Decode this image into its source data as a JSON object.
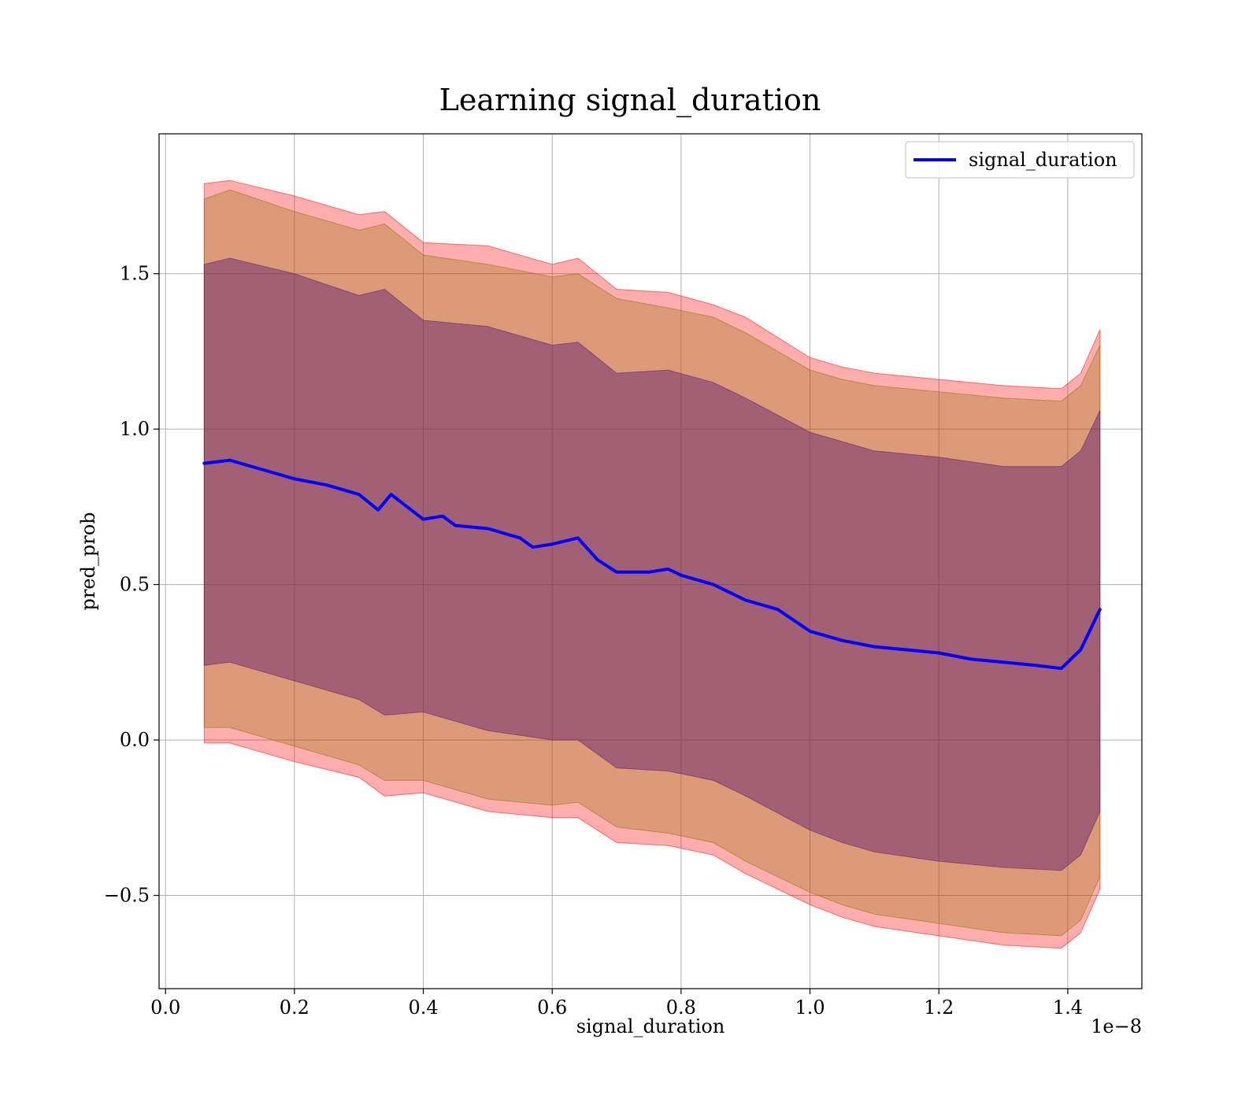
{
  "chart_data": {
    "type": "area",
    "title": "Learning signal_duration",
    "xlabel": "signal_duration",
    "ylabel": "pred_prob",
    "x_offset_text": "1e−8",
    "xlim": [
      -0.01,
      1.515
    ],
    "ylim": [
      -0.8,
      1.95
    ],
    "x_ticks": [
      0.0,
      0.2,
      0.4,
      0.6,
      0.8,
      1.0,
      1.2,
      1.4
    ],
    "x_tick_labels": [
      "0.0",
      "0.2",
      "0.4",
      "0.6",
      "0.8",
      "1.0",
      "1.2",
      "1.4"
    ],
    "y_ticks": [
      -0.5,
      0.0,
      0.5,
      1.0,
      1.5
    ],
    "y_tick_labels": [
      "−0.5",
      "0.0",
      "0.5",
      "1.0",
      "1.5"
    ],
    "grid": true,
    "legend": {
      "placement": "top-right",
      "entries": [
        "signal_duration"
      ]
    },
    "colors": {
      "line": "#0000ff",
      "band_outer": "#ff0000",
      "band_middle": "#8b7000",
      "band_inner": "#5a1a6e",
      "grid": "#b0b0b0"
    },
    "series": [
      {
        "name": "signal_duration",
        "x": [
          0.06,
          0.1,
          0.15,
          0.2,
          0.25,
          0.3,
          0.33,
          0.35,
          0.4,
          0.43,
          0.45,
          0.5,
          0.55,
          0.57,
          0.6,
          0.64,
          0.67,
          0.7,
          0.75,
          0.78,
          0.8,
          0.85,
          0.9,
          0.95,
          1.0,
          1.05,
          1.1,
          1.15,
          1.2,
          1.25,
          1.3,
          1.35,
          1.39,
          1.42,
          1.45
        ],
        "y": [
          0.89,
          0.9,
          0.87,
          0.84,
          0.82,
          0.79,
          0.74,
          0.79,
          0.71,
          0.72,
          0.69,
          0.68,
          0.65,
          0.62,
          0.63,
          0.65,
          0.58,
          0.54,
          0.54,
          0.55,
          0.53,
          0.5,
          0.45,
          0.42,
          0.35,
          0.32,
          0.3,
          0.29,
          0.28,
          0.26,
          0.25,
          0.24,
          0.23,
          0.29,
          0.42
        ]
      }
    ],
    "bands": [
      {
        "level": "outer",
        "x": [
          0.06,
          0.1,
          0.2,
          0.3,
          0.34,
          0.4,
          0.5,
          0.6,
          0.64,
          0.7,
          0.78,
          0.85,
          0.9,
          1.0,
          1.05,
          1.1,
          1.2,
          1.3,
          1.39,
          1.42,
          1.45
        ],
        "upper": [
          1.79,
          1.8,
          1.75,
          1.69,
          1.7,
          1.6,
          1.59,
          1.53,
          1.55,
          1.45,
          1.44,
          1.4,
          1.36,
          1.23,
          1.2,
          1.18,
          1.16,
          1.14,
          1.13,
          1.18,
          1.32
        ],
        "lower": [
          -0.01,
          -0.01,
          -0.07,
          -0.12,
          -0.18,
          -0.17,
          -0.23,
          -0.25,
          -0.25,
          -0.33,
          -0.34,
          -0.37,
          -0.43,
          -0.53,
          -0.57,
          -0.6,
          -0.63,
          -0.66,
          -0.67,
          -0.62,
          -0.48
        ]
      },
      {
        "level": "middle",
        "x": [
          0.06,
          0.1,
          0.2,
          0.3,
          0.34,
          0.4,
          0.5,
          0.6,
          0.64,
          0.7,
          0.78,
          0.85,
          0.9,
          1.0,
          1.05,
          1.1,
          1.2,
          1.3,
          1.39,
          1.42,
          1.45
        ],
        "upper": [
          1.74,
          1.77,
          1.7,
          1.64,
          1.66,
          1.56,
          1.53,
          1.49,
          1.5,
          1.42,
          1.39,
          1.36,
          1.31,
          1.19,
          1.16,
          1.14,
          1.12,
          1.1,
          1.09,
          1.14,
          1.27
        ],
        "lower": [
          0.04,
          0.04,
          -0.02,
          -0.08,
          -0.13,
          -0.13,
          -0.19,
          -0.21,
          -0.2,
          -0.28,
          -0.3,
          -0.33,
          -0.39,
          -0.49,
          -0.53,
          -0.56,
          -0.59,
          -0.62,
          -0.63,
          -0.58,
          -0.44
        ]
      },
      {
        "level": "inner",
        "x": [
          0.06,
          0.1,
          0.2,
          0.3,
          0.34,
          0.4,
          0.5,
          0.6,
          0.64,
          0.7,
          0.78,
          0.85,
          0.9,
          1.0,
          1.05,
          1.1,
          1.2,
          1.3,
          1.39,
          1.42,
          1.45
        ],
        "upper": [
          1.53,
          1.55,
          1.5,
          1.43,
          1.45,
          1.35,
          1.33,
          1.27,
          1.28,
          1.18,
          1.19,
          1.15,
          1.1,
          0.99,
          0.96,
          0.93,
          0.91,
          0.88,
          0.88,
          0.93,
          1.06
        ],
        "lower": [
          0.24,
          0.25,
          0.19,
          0.13,
          0.08,
          0.09,
          0.03,
          0.0,
          0.0,
          -0.09,
          -0.1,
          -0.13,
          -0.18,
          -0.29,
          -0.33,
          -0.36,
          -0.39,
          -0.41,
          -0.42,
          -0.37,
          -0.23
        ]
      }
    ]
  }
}
